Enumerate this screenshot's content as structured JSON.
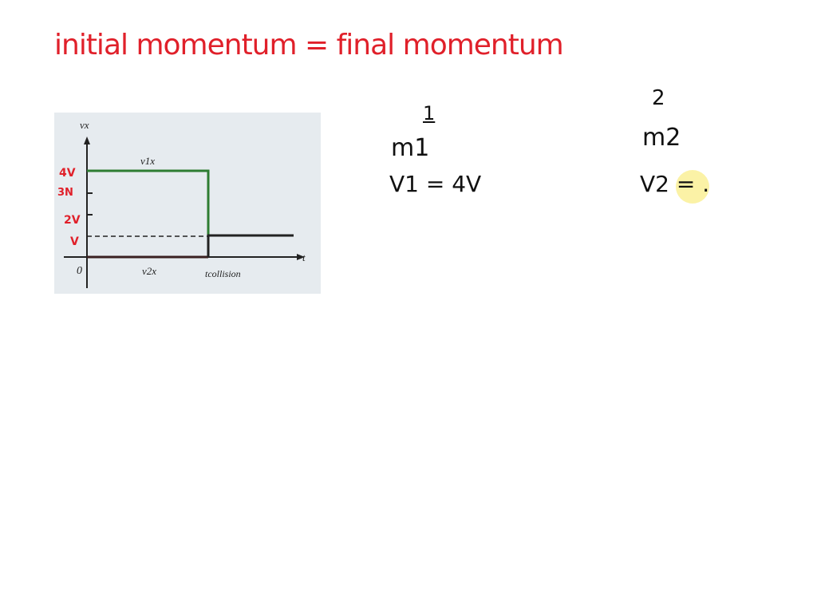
{
  "title": "initial momentum = final momentum",
  "graph": {
    "y_axis_label": "vx",
    "x_axis_label": "t",
    "origin_label": "0",
    "v1_label": "v1x",
    "v2_label": "v2x",
    "collision_label": "tcollision",
    "hand_ticks": [
      "4V",
      "3N",
      "2V",
      "V"
    ],
    "colors": {
      "v1": "#2e7d32",
      "v2": "#222222",
      "annotations": "#e0202a"
    }
  },
  "object1": {
    "heading": "1",
    "mass": "m1",
    "velocity": "V1 = 4V"
  },
  "object2": {
    "heading": "2",
    "mass": "m2",
    "velocity": "V2 = ."
  }
}
